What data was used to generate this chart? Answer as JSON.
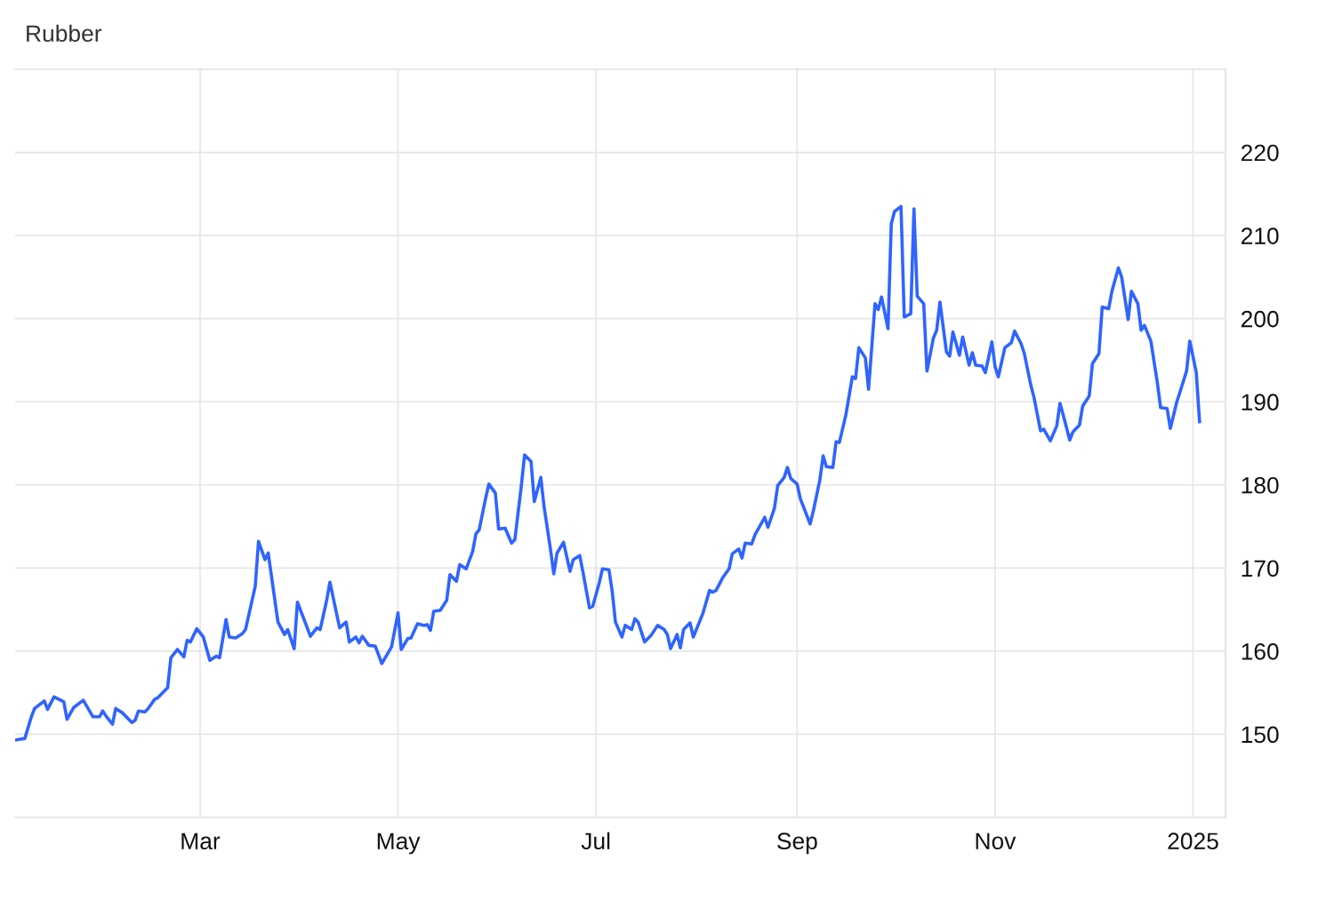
{
  "chart_data": {
    "type": "line",
    "title": "Rubber",
    "x": [
      "2024-01-04",
      "2024-01-07",
      "2024-01-09",
      "2024-01-10",
      "2024-01-13",
      "2024-01-14",
      "2024-01-16",
      "2024-01-19",
      "2024-01-20",
      "2024-01-22",
      "2024-01-25",
      "2024-01-28",
      "2024-01-30",
      "2024-01-31",
      "2024-02-01",
      "2024-02-03",
      "2024-02-04",
      "2024-02-06",
      "2024-02-09",
      "2024-02-10",
      "2024-02-11",
      "2024-02-13",
      "2024-02-14",
      "2024-02-16",
      "2024-02-17",
      "2024-02-19",
      "2024-02-20",
      "2024-02-21",
      "2024-02-23",
      "2024-02-25",
      "2024-02-26",
      "2024-02-27",
      "2024-02-29",
      "2024-03-02",
      "2024-03-04",
      "2024-03-06",
      "2024-03-07",
      "2024-03-09",
      "2024-03-10",
      "2024-03-12",
      "2024-03-14",
      "2024-03-15",
      "2024-03-18",
      "2024-03-19",
      "2024-03-21",
      "2024-03-22",
      "2024-03-25",
      "2024-03-27",
      "2024-03-28",
      "2024-03-30",
      "2024-03-31",
      "2024-04-04",
      "2024-04-06",
      "2024-04-07",
      "2024-04-09",
      "2024-04-10",
      "2024-04-13",
      "2024-04-15",
      "2024-04-16",
      "2024-04-18",
      "2024-04-19",
      "2024-04-20",
      "2024-04-22",
      "2024-04-24",
      "2024-04-26",
      "2024-04-29",
      "2024-05-01",
      "2024-05-02",
      "2024-05-04",
      "2024-05-05",
      "2024-05-07",
      "2024-05-09",
      "2024-05-10",
      "2024-05-11",
      "2024-05-12",
      "2024-05-14",
      "2024-05-16",
      "2024-05-17",
      "2024-05-19",
      "2024-05-20",
      "2024-05-22",
      "2024-05-24",
      "2024-05-25",
      "2024-05-26",
      "2024-05-28",
      "2024-05-29",
      "2024-05-31",
      "2024-06-01",
      "2024-06-03",
      "2024-06-05",
      "2024-06-06",
      "2024-06-08",
      "2024-06-09",
      "2024-06-11",
      "2024-06-12",
      "2024-06-14",
      "2024-06-15",
      "2024-06-17",
      "2024-06-18",
      "2024-06-19",
      "2024-06-21",
      "2024-06-23",
      "2024-06-24",
      "2024-06-26",
      "2024-06-27",
      "2024-06-29",
      "2024-06-30",
      "2024-07-02",
      "2024-07-03",
      "2024-07-05",
      "2024-07-06",
      "2024-07-07",
      "2024-07-09",
      "2024-07-10",
      "2024-07-12",
      "2024-07-13",
      "2024-07-14",
      "2024-07-16",
      "2024-07-17",
      "2024-07-18",
      "2024-07-20",
      "2024-07-22",
      "2024-07-23",
      "2024-07-24",
      "2024-07-26",
      "2024-07-27",
      "2024-07-28",
      "2024-07-30",
      "2024-07-31",
      "2024-08-03",
      "2024-08-05",
      "2024-08-06",
      "2024-08-07",
      "2024-08-09",
      "2024-08-11",
      "2024-08-12",
      "2024-08-14",
      "2024-08-15",
      "2024-08-16",
      "2024-08-18",
      "2024-08-19",
      "2024-08-22",
      "2024-08-23",
      "2024-08-25",
      "2024-08-26",
      "2024-08-28",
      "2024-08-29",
      "2024-08-30",
      "2024-09-01",
      "2024-09-02",
      "2024-09-05",
      "2024-09-06",
      "2024-09-08",
      "2024-09-09",
      "2024-09-10",
      "2024-09-12",
      "2024-09-13",
      "2024-09-14",
      "2024-09-16",
      "2024-09-18",
      "2024-09-19",
      "2024-09-20",
      "2024-09-22",
      "2024-09-23",
      "2024-09-25",
      "2024-09-26",
      "2024-09-27",
      "2024-09-29",
      "2024-09-30",
      "2024-10-01",
      "2024-10-03",
      "2024-10-04",
      "2024-10-06",
      "2024-10-07",
      "2024-10-08",
      "2024-10-10",
      "2024-10-11",
      "2024-10-13",
      "2024-10-14",
      "2024-10-15",
      "2024-10-17",
      "2024-10-18",
      "2024-10-19",
      "2024-10-21",
      "2024-10-22",
      "2024-10-24",
      "2024-10-25",
      "2024-10-26",
      "2024-10-28",
      "2024-10-29",
      "2024-10-31",
      "2024-11-01",
      "2024-11-02",
      "2024-11-04",
      "2024-11-06",
      "2024-11-07",
      "2024-11-09",
      "2024-11-10",
      "2024-11-12",
      "2024-11-13",
      "2024-11-15",
      "2024-11-16",
      "2024-11-18",
      "2024-11-20",
      "2024-11-21",
      "2024-11-22",
      "2024-11-24",
      "2024-11-25",
      "2024-11-27",
      "2024-11-28",
      "2024-11-30",
      "2024-12-01",
      "2024-12-03",
      "2024-12-04",
      "2024-12-06",
      "2024-12-07",
      "2024-12-09",
      "2024-12-10",
      "2024-12-12",
      "2024-12-13",
      "2024-12-15",
      "2024-12-16",
      "2024-12-17",
      "2024-12-19",
      "2024-12-21",
      "2024-12-22",
      "2024-12-24",
      "2024-12-25",
      "2024-12-27",
      "2024-12-28",
      "2024-12-30",
      "2024-12-31",
      "2025-01-02",
      "2025-01-03"
    ],
    "series": [
      {
        "color": "#2f64ff",
        "values": [
          149.3,
          149.5,
          152.1,
          153.1,
          154.0,
          153.0,
          154.5,
          153.9,
          151.8,
          153.2,
          154.1,
          152.1,
          152.1,
          152.8,
          152.2,
          151.2,
          153.1,
          152.6,
          151.4,
          151.7,
          152.8,
          152.7,
          153.1,
          154.2,
          154.4,
          155.2,
          155.6,
          159.2,
          160.2,
          159.3,
          161.3,
          161.1,
          162.7,
          161.7,
          158.9,
          159.4,
          159.2,
          163.8,
          161.7,
          161.6,
          162.1,
          162.6,
          167.8,
          173.2,
          171.0,
          171.8,
          163.5,
          162.0,
          162.6,
          160.3,
          165.9,
          161.8,
          162.8,
          162.6,
          166.1,
          168.3,
          162.8,
          163.5,
          161.1,
          161.7,
          161.0,
          161.8,
          160.7,
          160.6,
          158.5,
          160.5,
          164.6,
          160.2,
          161.5,
          161.6,
          163.3,
          163.1,
          163.2,
          162.5,
          164.8,
          164.9,
          166.1,
          169.2,
          168.4,
          170.4,
          169.9,
          172.0,
          174.1,
          174.6,
          178.4,
          180.1,
          179.0,
          174.7,
          174.8,
          173.0,
          173.4,
          179.9,
          183.6,
          182.8,
          178.0,
          180.9,
          177.4,
          172.2,
          169.3,
          171.8,
          173.1,
          169.6,
          171.0,
          171.5,
          169.5,
          165.2,
          165.4,
          168.2,
          169.9,
          169.8,
          167.2,
          163.5,
          161.7,
          163.1,
          162.6,
          163.9,
          163.5,
          161.1,
          161.5,
          161.9,
          163.1,
          162.6,
          162.0,
          160.3,
          162.0,
          160.4,
          162.6,
          163.4,
          161.7,
          164.6,
          167.3,
          167.1,
          167.3,
          168.8,
          169.9,
          171.7,
          172.3,
          171.2,
          173.0,
          172.9,
          174.0,
          176.1,
          174.9,
          177.2,
          179.9,
          180.9,
          182.1,
          180.8,
          180.1,
          178.3,
          175.3,
          176.9,
          180.6,
          183.5,
          182.2,
          182.1,
          185.2,
          185.1,
          188.4,
          193.0,
          192.8,
          196.5,
          195.3,
          191.5,
          201.8,
          201.1,
          202.6,
          198.8,
          211.4,
          212.9,
          213.5,
          200.2,
          200.6,
          213.2,
          202.7,
          201.8,
          193.7,
          197.7,
          198.6,
          202.0,
          196.0,
          195.5,
          198.4,
          195.6,
          197.8,
          194.4,
          195.9,
          194.4,
          194.3,
          193.5,
          197.2,
          194.2,
          193.0,
          196.5,
          197.1,
          198.5,
          197.0,
          195.8,
          192.0,
          190.5,
          186.5,
          186.7,
          185.3,
          187.1,
          189.8,
          188.4,
          185.4,
          186.4,
          187.2,
          189.5,
          190.7,
          194.6,
          195.8,
          201.4,
          201.2,
          203.3,
          206.1,
          205.0,
          199.9,
          203.3,
          201.8,
          198.6,
          199.2,
          197.3,
          192.3,
          189.3,
          189.2,
          186.8,
          190.0,
          191.2,
          193.7,
          197.3,
          193.5,
          187.6
        ]
      }
    ],
    "xlim": [
      "2024-01-04",
      "2025-01-11"
    ],
    "xticks": [
      {
        "value": "2024-03-01",
        "label": "Mar"
      },
      {
        "value": "2024-05-01",
        "label": "May"
      },
      {
        "value": "2024-07-01",
        "label": "Jul"
      },
      {
        "value": "2024-09-01",
        "label": "Sep"
      },
      {
        "value": "2024-11-01",
        "label": "Nov"
      },
      {
        "value": "2025-01-01",
        "label": "2025"
      }
    ],
    "ylim": [
      140,
      230
    ],
    "yticks": [
      150,
      160,
      170,
      180,
      190,
      200,
      210,
      220
    ],
    "grid": true
  }
}
